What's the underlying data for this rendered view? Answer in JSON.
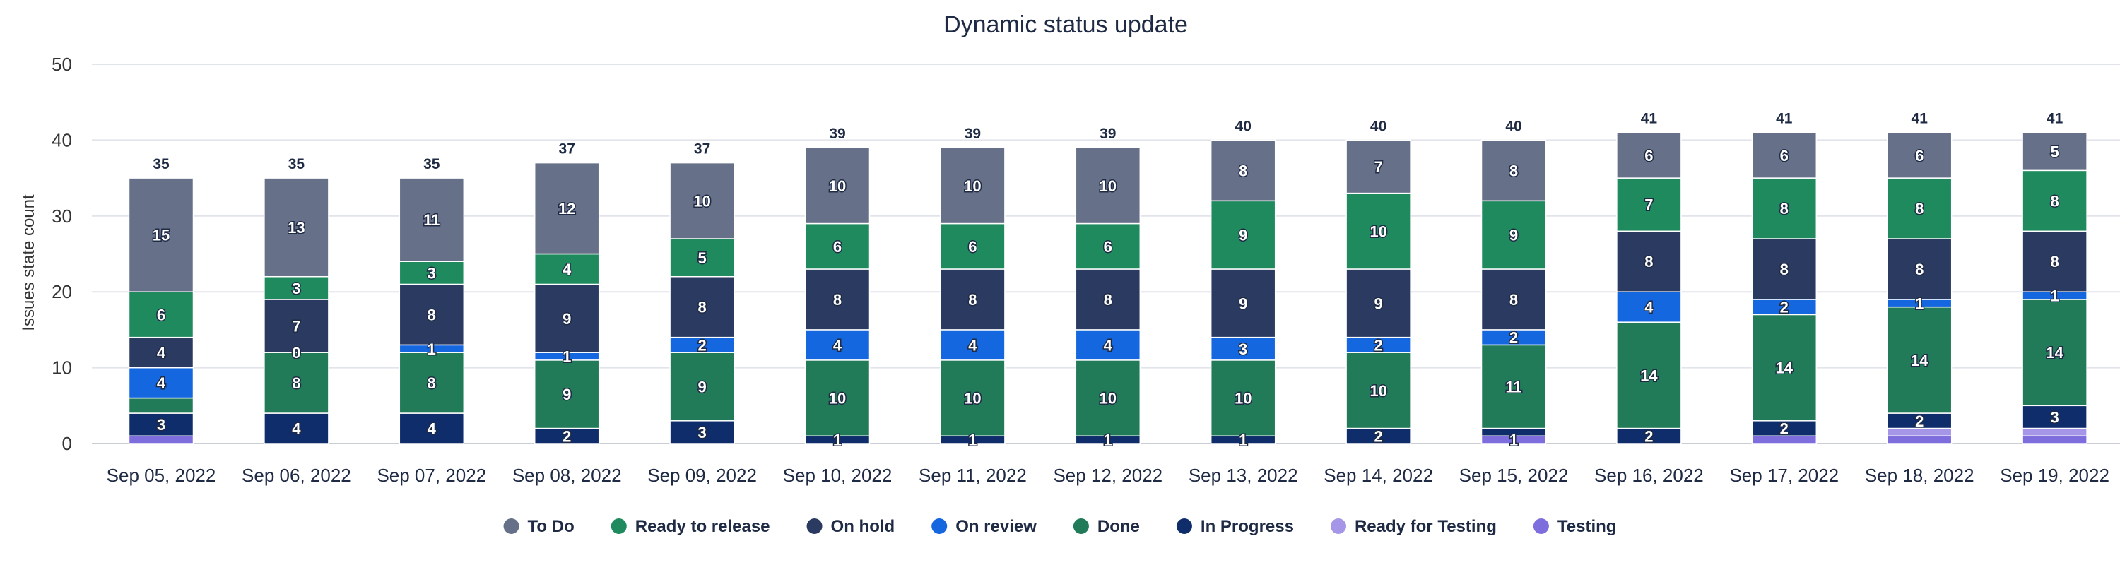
{
  "chart_data": {
    "type": "bar",
    "stacked": true,
    "title": "Dynamic status update",
    "xlabel": "",
    "ylabel": "Issues state count",
    "ylim": [
      0,
      50
    ],
    "yticks": [
      0,
      10,
      20,
      30,
      40,
      50
    ],
    "grid": true,
    "legend_position": "bottom",
    "categories": [
      "Sep 05, 2022",
      "Sep 06, 2022",
      "Sep 07, 2022",
      "Sep 08, 2022",
      "Sep 09, 2022",
      "Sep 10, 2022",
      "Sep 11, 2022",
      "Sep 12, 2022",
      "Sep 13, 2022",
      "Sep 14, 2022",
      "Sep 15, 2022",
      "Sep 16, 2022",
      "Sep 17, 2022",
      "Sep 18, 2022",
      "Sep 19, 2022"
    ],
    "totals": [
      35,
      35,
      35,
      37,
      37,
      39,
      39,
      39,
      40,
      40,
      40,
      41,
      41,
      41,
      41
    ],
    "series": [
      {
        "name": "Testing",
        "color": "#7e6ddd",
        "values": [
          1,
          0,
          0,
          0,
          0,
          0,
          0,
          0,
          0,
          0,
          1,
          0,
          1,
          1,
          1
        ]
      },
      {
        "name": "Ready for Testing",
        "color": "#a596e8",
        "values": [
          0,
          0,
          0,
          0,
          0,
          0,
          0,
          0,
          0,
          0,
          0,
          0,
          0,
          1,
          1
        ]
      },
      {
        "name": "In Progress",
        "color": "#0f2d6b",
        "values": [
          3,
          4,
          4,
          2,
          3,
          1,
          1,
          1,
          1,
          2,
          1,
          2,
          2,
          2,
          3
        ]
      },
      {
        "name": "Done",
        "color": "#217a58",
        "values": [
          2,
          8,
          8,
          9,
          9,
          10,
          10,
          10,
          10,
          10,
          11,
          14,
          14,
          14,
          14
        ]
      },
      {
        "name": "On review",
        "color": "#1567e0",
        "values": [
          4,
          0,
          1,
          1,
          2,
          4,
          4,
          4,
          3,
          2,
          2,
          4,
          2,
          1,
          1
        ]
      },
      {
        "name": "On hold",
        "color": "#2b3a60",
        "values": [
          4,
          7,
          8,
          9,
          8,
          8,
          8,
          8,
          9,
          9,
          8,
          8,
          8,
          8,
          8
        ]
      },
      {
        "name": "Ready to release",
        "color": "#1e8a5e",
        "values": [
          6,
          3,
          3,
          4,
          5,
          6,
          6,
          6,
          9,
          10,
          9,
          7,
          8,
          8,
          8
        ]
      },
      {
        "name": "To Do",
        "color": "#667089",
        "values": [
          15,
          13,
          11,
          12,
          10,
          10,
          10,
          10,
          8,
          7,
          8,
          6,
          6,
          6,
          5
        ]
      }
    ],
    "labels": {
      "Testing": [
        null,
        null,
        null,
        null,
        null,
        null,
        null,
        null,
        null,
        null,
        "1",
        null,
        null,
        null,
        null
      ],
      "Ready for Testing": [
        null,
        null,
        null,
        null,
        null,
        null,
        null,
        null,
        null,
        null,
        null,
        null,
        null,
        null,
        null
      ],
      "In Progress": [
        "3",
        "4",
        "4",
        "2",
        "3",
        "1",
        "1",
        "1",
        "1",
        "2",
        null,
        "2",
        "2",
        "2",
        "3"
      ],
      "Done": [
        null,
        "8",
        "8",
        "9",
        "9",
        "10",
        "10",
        "10",
        "10",
        "10",
        "11",
        "14",
        "14",
        "14",
        "14"
      ],
      "On review": [
        "4",
        "0",
        "1",
        "1",
        "2",
        "4",
        "4",
        "4",
        "3",
        "2",
        "2",
        "4",
        "2",
        "1",
        "1"
      ],
      "On hold": [
        "4",
        "7",
        "8",
        "9",
        "8",
        "8",
        "8",
        "8",
        "9",
        "9",
        "8",
        "8",
        "8",
        "8",
        "8"
      ],
      "Ready to release": [
        "6",
        "3",
        "3",
        "4",
        "5",
        "6",
        "6",
        "6",
        "9",
        "10",
        "9",
        "7",
        "8",
        "8",
        "8"
      ],
      "To Do": [
        "15",
        "13",
        "11",
        "12",
        "10",
        "10",
        "10",
        "10",
        "8",
        "7",
        "8",
        "6",
        "6",
        "6",
        "5"
      ]
    },
    "legend": [
      {
        "name": "To Do",
        "color": "#667089"
      },
      {
        "name": "Ready to release",
        "color": "#1e8a5e"
      },
      {
        "name": "On hold",
        "color": "#2b3a60"
      },
      {
        "name": "On review",
        "color": "#1567e0"
      },
      {
        "name": "Done",
        "color": "#217a58"
      },
      {
        "name": "In Progress",
        "color": "#0f2d6b"
      },
      {
        "name": "Ready for Testing",
        "color": "#a596e8"
      },
      {
        "name": "Testing",
        "color": "#7e6ddd"
      }
    ]
  }
}
